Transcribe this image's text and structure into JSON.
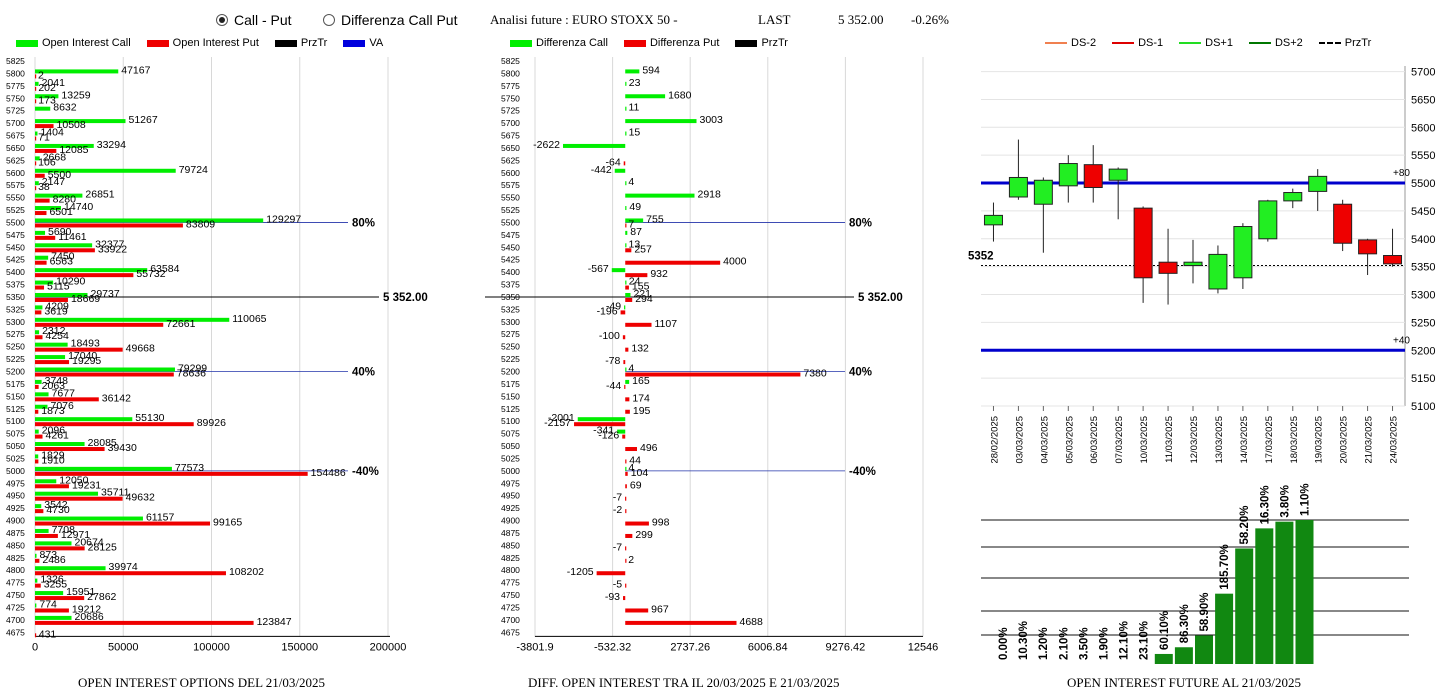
{
  "controls": {
    "radio_call_put": "Call - Put",
    "radio_diff": "Differenza Call Put",
    "selected": "call_put"
  },
  "header": {
    "title": "Analisi future : EURO STOXX 50 -",
    "last_label": "LAST",
    "last_value": "5 352.00",
    "change": "-0.26%"
  },
  "legend1": [
    {
      "label": "Open Interest Call",
      "color": "#00ee00"
    },
    {
      "label": "Open Interest Put",
      "color": "#ee0000"
    },
    {
      "label": "PrzTr",
      "color": "#000000"
    },
    {
      "label": "VA",
      "color": "#0000dd"
    }
  ],
  "legend2": [
    {
      "label": "Differenza Call",
      "color": "#00ee00"
    },
    {
      "label": "Differenza Put",
      "color": "#ee0000"
    },
    {
      "label": "PrzTr",
      "color": "#000000"
    }
  ],
  "legend3": [
    {
      "label": "DS-2",
      "color": "#f08050",
      "style": "solid"
    },
    {
      "label": "DS-1",
      "color": "#dd0000",
      "style": "solid"
    },
    {
      "label": "DS+1",
      "color": "#22dd22",
      "style": "solid"
    },
    {
      "label": "DS+2",
      "color": "#007700",
      "style": "solid"
    },
    {
      "label": "PrzTr",
      "color": "#000000",
      "style": "dashed"
    }
  ],
  "footer": {
    "left": "OPEN INTEREST OPTIONS DEL 21/03/2025",
    "mid": "DIFF. OPEN INTEREST TRA IL 20/03/2025 E 21/03/2025",
    "right": "OPEN INTEREST FUTURE AL 21/03/2025"
  },
  "chart_data": [
    {
      "type": "bar",
      "orientation": "horizontal",
      "name": "open-interest-options",
      "strikes": [
        5825,
        5800,
        5775,
        5750,
        5725,
        5700,
        5675,
        5650,
        5625,
        5600,
        5575,
        5550,
        5525,
        5500,
        5475,
        5450,
        5425,
        5400,
        5375,
        5350,
        5325,
        5300,
        5275,
        5250,
        5225,
        5200,
        5175,
        5150,
        5125,
        5100,
        5075,
        5050,
        5025,
        5000,
        4975,
        4950,
        4925,
        4900,
        4875,
        4850,
        4825,
        4800,
        4775,
        4750,
        4725,
        4700,
        4675
      ],
      "series": [
        {
          "name": "Open Interest Call",
          "color": "#00ee00",
          "values": [
            null,
            47167,
            2041,
            13259,
            8632,
            51267,
            1404,
            33294,
            2668,
            79724,
            2147,
            26851,
            14740,
            129297,
            5690,
            32377,
            7450,
            63584,
            10290,
            29737,
            4209,
            110065,
            2312,
            18493,
            17040,
            79299,
            3748,
            7677,
            7076,
            55130,
            2096,
            28085,
            1829,
            77573,
            12050,
            35711,
            3542,
            61157,
            7708,
            20674,
            873,
            39974,
            1326,
            15951,
            774,
            20686,
            null
          ]
        },
        {
          "name": "Open Interest Put",
          "color": "#ee0000",
          "values": [
            null,
            2,
            202,
            173,
            null,
            10508,
            71,
            12085,
            106,
            5500,
            38,
            8280,
            6501,
            83809,
            11461,
            33922,
            6563,
            55732,
            5115,
            18669,
            3619,
            72661,
            4254,
            49668,
            19295,
            78636,
            2063,
            36142,
            1873,
            89926,
            4261,
            39430,
            1910,
            154486,
            19231,
            49632,
            4730,
            99165,
            12971,
            28125,
            2486,
            108202,
            3255,
            27862,
            19212,
            123847,
            431
          ]
        }
      ],
      "price_line": {
        "label": "5 352.00",
        "level": 5350
      },
      "marks": [
        {
          "label": "80%",
          "level": 5500,
          "color": "#0000dd"
        },
        {
          "label": "40%",
          "level": 5200,
          "color": "#0000dd"
        },
        {
          "label": "-40%",
          "level": 5000,
          "color": "#0000dd"
        }
      ],
      "x_ticks": [
        0,
        50000,
        100000,
        150000,
        200000
      ],
      "xlim": [
        0,
        200000
      ]
    },
    {
      "type": "bar",
      "orientation": "horizontal",
      "name": "diff-open-interest",
      "strikes": [
        5825,
        5800,
        5775,
        5750,
        5725,
        5700,
        5675,
        5650,
        5625,
        5600,
        5575,
        5550,
        5525,
        5500,
        5475,
        5450,
        5425,
        5400,
        5375,
        5350,
        5325,
        5300,
        5275,
        5250,
        5225,
        5200,
        5175,
        5150,
        5125,
        5100,
        5075,
        5050,
        5025,
        5000,
        4975,
        4950,
        4925,
        4900,
        4875,
        4850,
        4825,
        4800,
        4775,
        4750,
        4725,
        4700,
        4675
      ],
      "series": [
        {
          "name": "Differenza Call",
          "color": "#00ee00",
          "values": [
            null,
            594,
            23,
            1680,
            11,
            3003,
            15,
            -2622,
            null,
            -442,
            4,
            2918,
            49,
            755,
            87,
            13,
            null,
            -567,
            24,
            221,
            -49,
            null,
            null,
            null,
            null,
            4,
            165,
            null,
            null,
            -2001,
            -341,
            null,
            null,
            4,
            null,
            null,
            null,
            null,
            null,
            null,
            null,
            null,
            null,
            null,
            null,
            null,
            null
          ]
        },
        {
          "name": "Differenza Put",
          "color": "#ee0000",
          "values": [
            null,
            null,
            null,
            null,
            null,
            null,
            null,
            null,
            -64,
            null,
            null,
            null,
            null,
            7,
            null,
            257,
            4000,
            932,
            155,
            294,
            -196,
            1107,
            -100,
            132,
            -78,
            7380,
            -44,
            174,
            195,
            -2157,
            -126,
            496,
            44,
            104,
            69,
            -7,
            -2,
            998,
            299,
            -7,
            2,
            -1205,
            -5,
            -93,
            967,
            4688,
            null
          ]
        }
      ],
      "price_line": {
        "label": "5 352.00",
        "level": 5350
      },
      "marks": [
        {
          "label": "80%",
          "level": 5500
        },
        {
          "label": "40%",
          "level": 5200
        },
        {
          "label": "-40%",
          "level": 5000
        }
      ],
      "x_tick_labels": [
        "-3801.9",
        "-532.32",
        "2737.26",
        "6006.84",
        "9276.42",
        "12546"
      ],
      "xlim": [
        -3801.9,
        12546
      ]
    },
    {
      "type": "candlestick",
      "name": "future-price",
      "dates": [
        "28/02/2025",
        "03/03/2025",
        "04/03/2025",
        "05/03/2025",
        "06/03/2025",
        "07/03/2025",
        "10/03/2025",
        "11/03/2025",
        "12/03/2025",
        "13/03/2025",
        "14/03/2025",
        "17/03/2025",
        "18/03/2025",
        "19/03/2025",
        "20/03/2025",
        "21/03/2025",
        "24/03/2025"
      ],
      "ohlc": [
        [
          5425,
          5465,
          5395,
          5442
        ],
        [
          5475,
          5578,
          5470,
          5510
        ],
        [
          5462,
          5510,
          5375,
          5505
        ],
        [
          5495,
          5550,
          5465,
          5535
        ],
        [
          5533,
          5568,
          5465,
          5492
        ],
        [
          5505,
          5528,
          5435,
          5525
        ],
        [
          5455,
          5458,
          5285,
          5330
        ],
        [
          5358,
          5418,
          5282,
          5338
        ],
        [
          5352,
          5398,
          5320,
          5358
        ],
        [
          5310,
          5388,
          5302,
          5372
        ],
        [
          5330,
          5428,
          5310,
          5422
        ],
        [
          5400,
          5470,
          5395,
          5468
        ],
        [
          5468,
          5490,
          5455,
          5483
        ],
        [
          5485,
          5525,
          5450,
          5512
        ],
        [
          5462,
          5470,
          5378,
          5392
        ],
        [
          5398,
          5400,
          5335,
          5373
        ],
        [
          5370,
          5418,
          5350,
          5355
        ]
      ],
      "y_ticks": [
        5100,
        5150,
        5200,
        5250,
        5300,
        5350,
        5400,
        5450,
        5500,
        5550,
        5600,
        5650,
        5700
      ],
      "ylim": [
        5100,
        5710
      ],
      "levels": [
        {
          "value": 5500,
          "label": "+80",
          "color": "#0000cc"
        },
        {
          "value": 5200,
          "label": "+40",
          "color": "#0000cc"
        }
      ],
      "price_line": {
        "value": 5352,
        "label": "5352"
      }
    },
    {
      "type": "bar",
      "name": "open-interest-future",
      "labels": [
        "0.00%",
        "10.30%",
        "1.20%",
        "2.10%",
        "3.50%",
        "1.90%",
        "12.10%",
        "23.10%",
        "60.10%",
        "86.30%",
        "58.90%",
        "185.70%",
        "58.20%",
        "16.30%",
        "3.80%",
        "1.10%"
      ],
      "values": [
        0,
        0,
        0,
        0,
        0,
        0,
        0,
        0,
        0.6,
        1.0,
        1.7,
        4.2,
        6.9,
        8.1,
        8.5,
        8.6
      ],
      "ylim": [
        0,
        8.6
      ]
    }
  ]
}
